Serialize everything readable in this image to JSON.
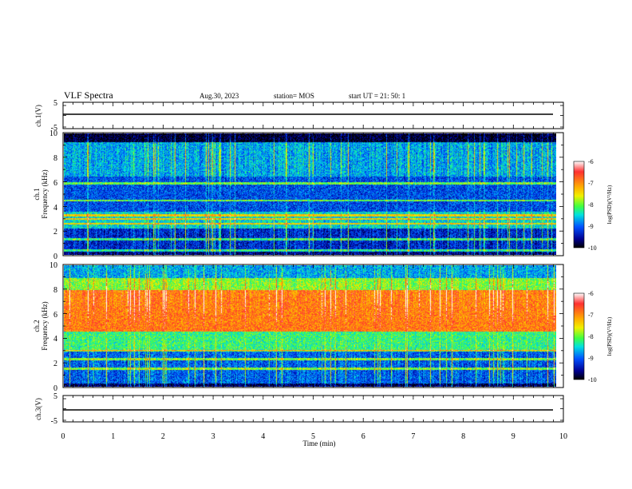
{
  "header": {
    "title": "VLF Spectra",
    "date": "Aug.30, 2023",
    "station": "station= MOS",
    "start": "start  UT =   21: 50: 1"
  },
  "panels": {
    "ch1": {
      "ylabel": "ch.1(V)",
      "ticks": [
        "5",
        "-5"
      ]
    },
    "spec1": {
      "ylabel_line1": "ch.1",
      "ylabel_line2": "Frequency (kHz)",
      "ticks": [
        "0",
        "2",
        "4",
        "6",
        "8",
        "10"
      ]
    },
    "spec2": {
      "ylabel_line1": "ch.2",
      "ylabel_line2": "Frequency (kHz)",
      "ticks": [
        "0",
        "2",
        "4",
        "6",
        "8",
        "10"
      ]
    },
    "ch3": {
      "ylabel": "ch.3(V)",
      "ticks": [
        "5",
        "-5"
      ]
    }
  },
  "xaxis": {
    "label": "Time  (min)",
    "ticks": [
      "0",
      "1",
      "2",
      "3",
      "4",
      "5",
      "6",
      "7",
      "8",
      "9",
      "10"
    ]
  },
  "colorbar": {
    "title": "log(PSD)(V²/Hz)",
    "ticks": [
      "-6",
      "-7",
      "-8",
      "-9",
      "-10"
    ]
  },
  "colors": {
    "cb_stops": [
      "#ffffff",
      "#ff3030",
      "#ffb000",
      "#f0f000",
      "#40ff40",
      "#00e0e0",
      "#0050ff",
      "#000090",
      "#000000"
    ]
  },
  "chart_data": [
    {
      "type": "line",
      "title": "VLF Spectra",
      "xlabel": "Time  (min)",
      "ylabel": "ch.1(V)",
      "xlim": [
        0,
        10
      ],
      "ylim": [
        -5,
        5
      ],
      "series": [
        {
          "x": [
            0,
            9.85
          ],
          "values": [
            0,
            0
          ]
        }
      ]
    },
    {
      "type": "heatmap",
      "xlabel": "Time  (min)",
      "ylabel": "ch.1 Frequency (kHz)",
      "xlim": [
        0,
        9.85
      ],
      "ylim": [
        0,
        10
      ],
      "clabel": "log(PSD)(V²/Hz)",
      "clim": [
        -10,
        -6
      ],
      "bands_khz": [
        {
          "from": 0.0,
          "to": 0.35,
          "log_psd": -9.6
        },
        {
          "from": 0.35,
          "to": 2.2,
          "log_psd": -9.3
        },
        {
          "from": 2.2,
          "to": 3.6,
          "log_psd": -8.5
        },
        {
          "from": 3.6,
          "to": 6.5,
          "log_psd": -9.1
        },
        {
          "from": 6.5,
          "to": 9.3,
          "log_psd": -8.7
        },
        {
          "from": 9.3,
          "to": 10.0,
          "log_psd": -9.9
        }
      ],
      "line_khz": [
        0.4,
        1.3,
        2.6,
        3.0,
        3.3,
        4.5,
        5.9
      ]
    },
    {
      "type": "heatmap",
      "xlabel": "Time  (min)",
      "ylabel": "ch.2 Frequency (kHz)",
      "xlim": [
        0,
        9.85
      ],
      "ylim": [
        0,
        10
      ],
      "clabel": "log(PSD)(V²/Hz)",
      "clim": [
        -10,
        -6
      ],
      "bands_khz": [
        {
          "from": 0.0,
          "to": 0.3,
          "log_psd": -9.7
        },
        {
          "from": 0.3,
          "to": 3.0,
          "log_psd": -9.0
        },
        {
          "from": 3.0,
          "to": 4.6,
          "log_psd": -8.2
        },
        {
          "from": 4.6,
          "to": 8.0,
          "log_psd": -6.9
        },
        {
          "from": 8.0,
          "to": 9.0,
          "log_psd": -7.9
        },
        {
          "from": 9.0,
          "to": 10.0,
          "log_psd": -8.7
        }
      ],
      "line_khz": [
        1.5,
        2.3,
        3.0
      ]
    },
    {
      "type": "line",
      "xlabel": "Time  (min)",
      "ylabel": "ch.3(V)",
      "xlim": [
        0,
        10
      ],
      "ylim": [
        -5,
        5
      ],
      "series": [
        {
          "x": [
            0,
            9.85
          ],
          "values": [
            0,
            0
          ]
        }
      ]
    }
  ]
}
